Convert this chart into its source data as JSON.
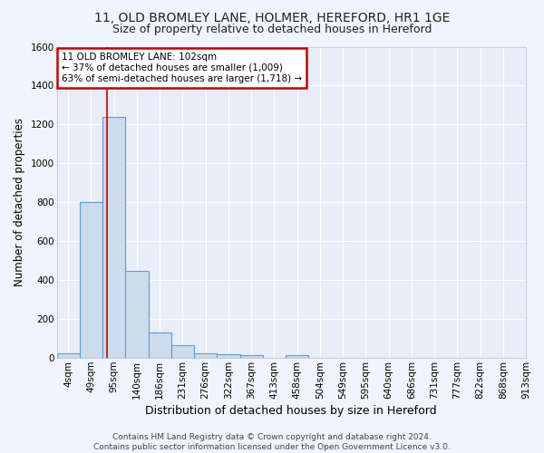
{
  "title1": "11, OLD BROMLEY LANE, HOLMER, HEREFORD, HR1 1GE",
  "title2": "Size of property relative to detached houses in Hereford",
  "xlabel": "Distribution of detached houses by size in Hereford",
  "ylabel": "Number of detached properties",
  "bin_labels": [
    "4sqm",
    "49sqm",
    "95sqm",
    "140sqm",
    "186sqm",
    "231sqm",
    "276sqm",
    "322sqm",
    "367sqm",
    "413sqm",
    "458sqm",
    "504sqm",
    "549sqm",
    "595sqm",
    "640sqm",
    "686sqm",
    "731sqm",
    "777sqm",
    "822sqm",
    "868sqm",
    "913sqm"
  ],
  "bar_heights": [
    25,
    800,
    1240,
    450,
    130,
    65,
    25,
    20,
    15,
    0,
    15,
    0,
    0,
    0,
    0,
    0,
    0,
    0,
    0,
    0
  ],
  "bar_color": "#ccdcec",
  "bar_edge_color": "#5b9bd5",
  "vline_x": 2.18,
  "vline_color": "#cc0000",
  "annotation_text": "11 OLD BROMLEY LANE: 102sqm\n← 37% of detached houses are smaller (1,009)\n63% of semi-detached houses are larger (1,718) →",
  "annotation_box_color": "#cc0000",
  "background_color": "#e8eef8",
  "grid_color": "#ffffff",
  "ylim": [
    0,
    1600
  ],
  "yticks": [
    0,
    200,
    400,
    600,
    800,
    1000,
    1200,
    1400,
    1600
  ],
  "footer": "Contains HM Land Registry data © Crown copyright and database right 2024.\nContains public sector information licensed under the Open Government Licence v3.0.",
  "title1_fontsize": 10,
  "title2_fontsize": 9,
  "xlabel_fontsize": 9,
  "ylabel_fontsize": 8.5,
  "tick_fontsize": 7.5,
  "footer_fontsize": 6.5
}
